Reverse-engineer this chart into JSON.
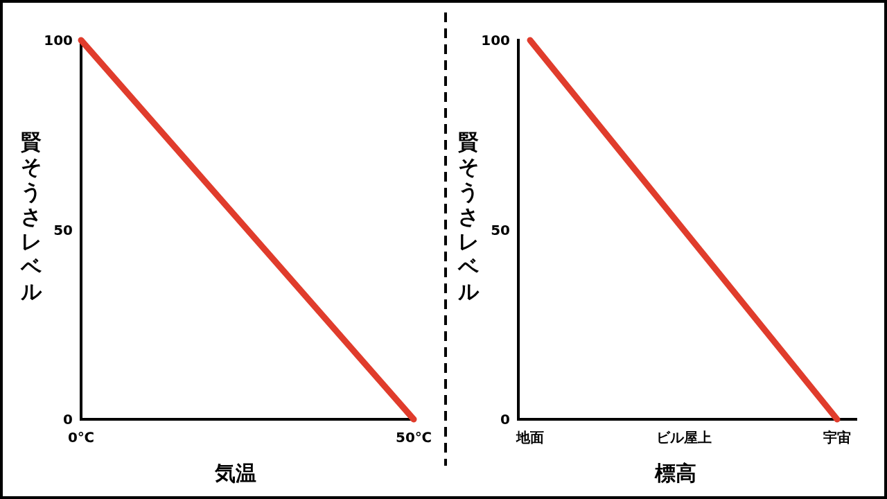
{
  "chart_data": [
    {
      "type": "line",
      "xlabel": "気温",
      "ylabel": "賢そうさレベル",
      "x": [
        0,
        50
      ],
      "xlim": [
        0,
        50
      ],
      "xticks": [
        {
          "value": 0,
          "label": "0℃"
        },
        {
          "value": 50,
          "label": "50℃"
        }
      ],
      "ylim": [
        0,
        100
      ],
      "yticks": [
        0,
        50,
        100
      ],
      "series": [
        {
          "color": "#e03c2c",
          "values": [
            100,
            0
          ]
        }
      ]
    },
    {
      "type": "line",
      "xlabel": "標高",
      "ylabel": "賢そうさレベル",
      "categories": [
        "地面",
        "ビル屋上",
        "宇宙"
      ],
      "ylim": [
        0,
        100
      ],
      "yticks": [
        0,
        50,
        100
      ],
      "series": [
        {
          "color": "#e03c2c",
          "values": [
            100,
            50,
            0
          ]
        }
      ]
    }
  ]
}
